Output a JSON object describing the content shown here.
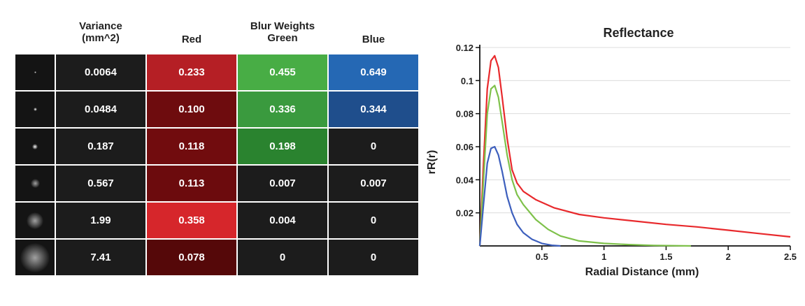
{
  "table": {
    "headers": {
      "variance_line1": "Variance",
      "variance_line2": "(mm^2)",
      "red": "Red",
      "group_label": "Blur Weights",
      "green": "Green",
      "blue": "Blue"
    },
    "rows": [
      {
        "variance": "0.0064",
        "red": "0.233",
        "green": "0.455",
        "blue": "0.649"
      },
      {
        "variance": "0.0484",
        "red": "0.100",
        "green": "0.336",
        "blue": "0.344"
      },
      {
        "variance": "0.187",
        "red": "0.118",
        "green": "0.198",
        "blue": "0"
      },
      {
        "variance": "0.567",
        "red": "0.113",
        "green": "0.007",
        "blue": "0.007"
      },
      {
        "variance": "1.99",
        "red": "0.358",
        "green": "0.004",
        "blue": "0"
      },
      {
        "variance": "7.41",
        "red": "0.078",
        "green": "0",
        "blue": "0"
      }
    ]
  },
  "colors": {
    "dark_cell": "#1c1c1c",
    "red_line": "#e8292c",
    "green_line": "#7ec14a",
    "blue_line": "#3d5fbd"
  },
  "chart_data": {
    "type": "line",
    "title": "Reflectance",
    "xlabel": "Radial Distance (mm)",
    "ylabel": "rR(r)",
    "xlim": [
      0,
      2.5
    ],
    "ylim": [
      0,
      0.12
    ],
    "x_ticks": [
      "0.5",
      "1",
      "1.5",
      "2",
      "2.5"
    ],
    "y_ticks": [
      "0.02",
      "0.04",
      "0.06",
      "0.08",
      "0.1",
      "0.12"
    ],
    "grid": "horizontal",
    "series": [
      {
        "color": "#e8292c",
        "x": [
          0,
          0.03,
          0.06,
          0.09,
          0.12,
          0.15,
          0.18,
          0.22,
          0.26,
          0.3,
          0.35,
          0.45,
          0.6,
          0.8,
          1.0,
          1.25,
          1.5,
          1.75,
          2.0,
          2.25,
          2.5
        ],
        "y": [
          0,
          0.05,
          0.095,
          0.112,
          0.115,
          0.108,
          0.09,
          0.065,
          0.046,
          0.038,
          0.033,
          0.028,
          0.023,
          0.019,
          0.017,
          0.015,
          0.013,
          0.0115,
          0.0095,
          0.0075,
          0.0055
        ]
      },
      {
        "color": "#7ec14a",
        "x": [
          0,
          0.03,
          0.06,
          0.09,
          0.12,
          0.15,
          0.18,
          0.22,
          0.26,
          0.3,
          0.35,
          0.45,
          0.55,
          0.65,
          0.8,
          1.0,
          1.2,
          1.4,
          1.7
        ],
        "y": [
          0,
          0.04,
          0.08,
          0.095,
          0.097,
          0.09,
          0.075,
          0.055,
          0.04,
          0.031,
          0.025,
          0.016,
          0.01,
          0.006,
          0.003,
          0.0015,
          0.0008,
          0.0003,
          0
        ]
      },
      {
        "color": "#3d5fbd",
        "x": [
          0,
          0.03,
          0.06,
          0.09,
          0.12,
          0.15,
          0.18,
          0.22,
          0.26,
          0.3,
          0.35,
          0.42,
          0.5,
          0.58,
          0.65
        ],
        "y": [
          0,
          0.025,
          0.05,
          0.059,
          0.06,
          0.055,
          0.045,
          0.03,
          0.02,
          0.013,
          0.008,
          0.004,
          0.0015,
          0.0004,
          0
        ]
      }
    ]
  }
}
